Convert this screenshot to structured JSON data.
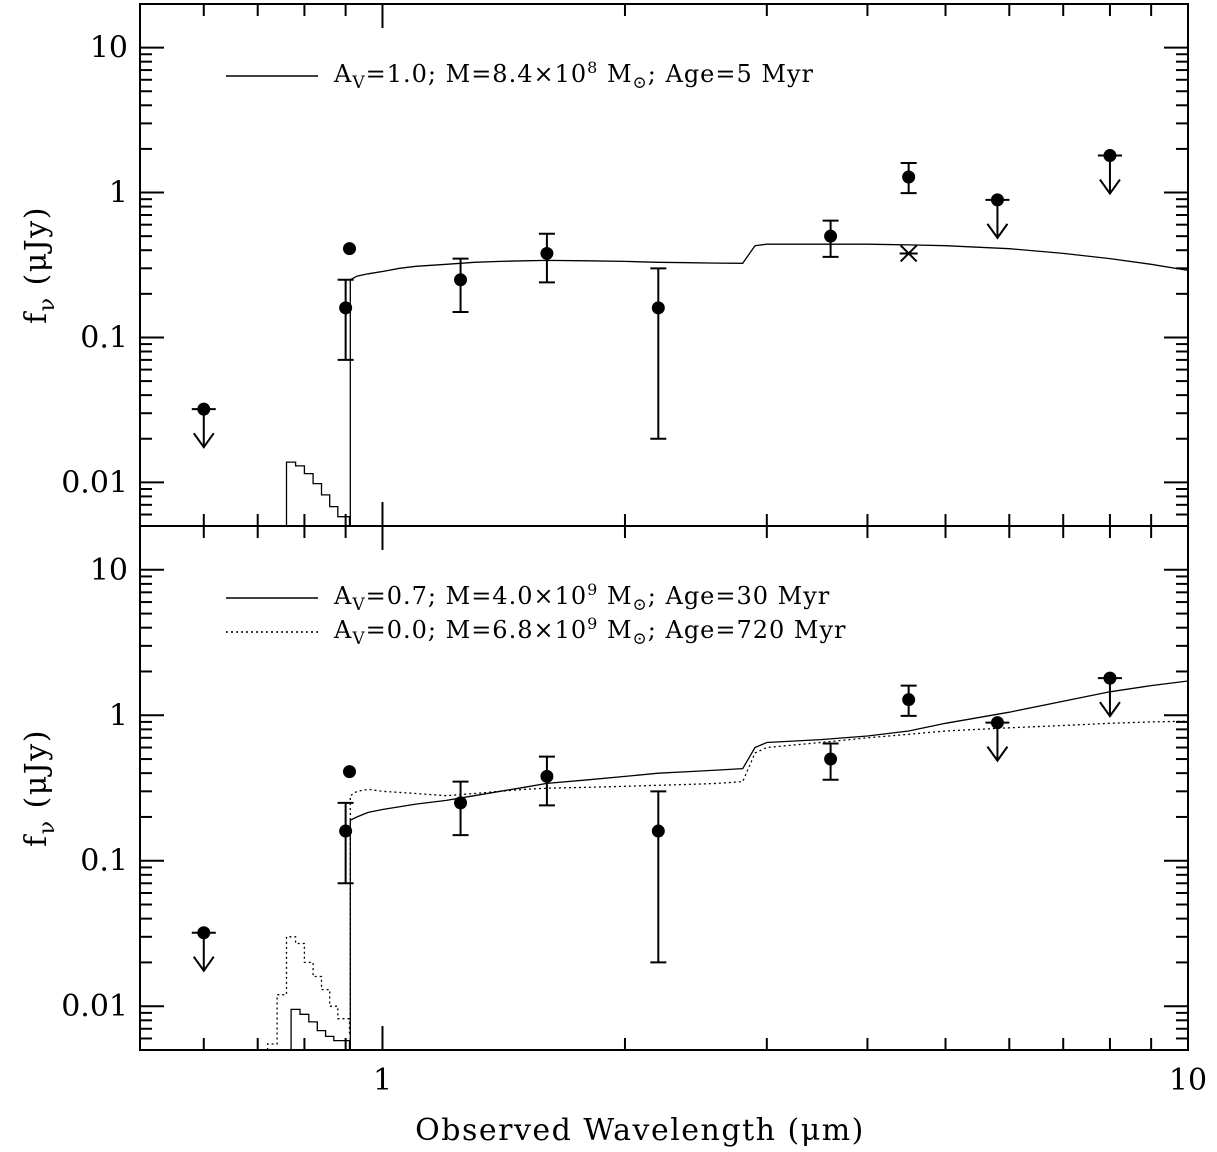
{
  "chart_data": [
    {
      "type": "scatter",
      "panel": "top",
      "xscale": "log",
      "yscale": "log",
      "xlim": [
        0.5,
        10
      ],
      "ylim": [
        0.005,
        20
      ],
      "ylabel_main": "f",
      "ylabel_sub": "ν",
      "ylabel_unit": " (μJy)",
      "xlabel": "",
      "yticks": [
        {
          "v": 0.01,
          "label": "0.01"
        },
        {
          "v": 0.1,
          "label": "0.1"
        },
        {
          "v": 1,
          "label": "1"
        },
        {
          "v": 10,
          "label": "10"
        }
      ],
      "xticks": [],
      "points": [
        {
          "x": 0.9,
          "y": 0.16,
          "lo": 0.07,
          "hi": 0.25
        },
        {
          "x": 0.91,
          "y": 0.41
        },
        {
          "x": 1.25,
          "y": 0.25,
          "lo": 0.15,
          "hi": 0.35
        },
        {
          "x": 1.6,
          "y": 0.38,
          "lo": 0.24,
          "hi": 0.52
        },
        {
          "x": 2.2,
          "y": 0.16,
          "lo": 0.02,
          "hi": 0.3
        },
        {
          "x": 3.6,
          "y": 0.5,
          "lo": 0.36,
          "hi": 0.64
        },
        {
          "x": 4.5,
          "y": 1.28,
          "lo": 0.99,
          "hi": 1.6
        }
      ],
      "upper_limits": [
        {
          "x": 0.6,
          "y": 0.032
        },
        {
          "x": 5.8,
          "y": 0.89
        },
        {
          "x": 8.0,
          "y": 1.8
        }
      ],
      "model_points": [
        {
          "x": 4.5,
          "y": 0.38,
          "marker": "x"
        }
      ],
      "series": [
        {
          "style": "solid",
          "legend": {
            "a_main": "A",
            "a_sub": "V",
            "a_rest": "=1.0; M=8.4×10",
            "exp": "8",
            "m_rest": " M",
            "m_sub": "⊙",
            "tail": "; Age=5 Myr"
          },
          "blue_bump": [
            [
              0.76,
              0.0138
            ],
            [
              0.78,
              0.013
            ],
            [
              0.8,
              0.0115
            ],
            [
              0.82,
              0.0098
            ],
            [
              0.84,
              0.0082
            ],
            [
              0.86,
              0.0068
            ],
            [
              0.88,
              0.0058
            ],
            [
              0.91,
              0.005
            ]
          ],
          "x": [
            0.912,
            0.93,
            0.96,
            1.0,
            1.05,
            1.1,
            1.2,
            1.3,
            1.4,
            1.5,
            1.6,
            1.8,
            2.0,
            2.2,
            2.4,
            2.6,
            2.8,
            2.9,
            3.0,
            3.5,
            4.0,
            4.5,
            5.0,
            6.0,
            7.0,
            8.0,
            9.0,
            10.0
          ],
          "y": [
            0.25,
            0.265,
            0.275,
            0.285,
            0.3,
            0.31,
            0.32,
            0.33,
            0.335,
            0.338,
            0.34,
            0.338,
            0.335,
            0.33,
            0.328,
            0.326,
            0.325,
            0.43,
            0.44,
            0.44,
            0.44,
            0.435,
            0.43,
            0.41,
            0.38,
            0.35,
            0.32,
            0.29
          ]
        }
      ]
    },
    {
      "type": "scatter",
      "panel": "bottom",
      "xscale": "log",
      "yscale": "log",
      "xlim": [
        0.5,
        10
      ],
      "ylim": [
        0.005,
        20
      ],
      "ylabel_main": "f",
      "ylabel_sub": "ν",
      "ylabel_unit": " (μJy)",
      "xlabel": "Observed Wavelength (μm)",
      "yticks": [
        {
          "v": 0.01,
          "label": "0.01"
        },
        {
          "v": 0.1,
          "label": "0.1"
        },
        {
          "v": 1,
          "label": "1"
        },
        {
          "v": 10,
          "label": "10"
        }
      ],
      "xticks": [
        {
          "v": 1,
          "label": "1"
        },
        {
          "v": 10,
          "label": "10"
        }
      ],
      "points": [
        {
          "x": 0.9,
          "y": 0.16,
          "lo": 0.07,
          "hi": 0.25
        },
        {
          "x": 0.91,
          "y": 0.41
        },
        {
          "x": 1.25,
          "y": 0.25,
          "lo": 0.15,
          "hi": 0.35
        },
        {
          "x": 1.6,
          "y": 0.38,
          "lo": 0.24,
          "hi": 0.52
        },
        {
          "x": 2.2,
          "y": 0.16,
          "lo": 0.02,
          "hi": 0.3
        },
        {
          "x": 3.6,
          "y": 0.5,
          "lo": 0.36,
          "hi": 0.64
        },
        {
          "x": 4.5,
          "y": 1.28,
          "lo": 0.99,
          "hi": 1.6
        }
      ],
      "upper_limits": [
        {
          "x": 0.6,
          "y": 0.032
        },
        {
          "x": 5.8,
          "y": 0.89
        },
        {
          "x": 8.0,
          "y": 1.8
        }
      ],
      "model_points": [],
      "series": [
        {
          "style": "solid",
          "legend": {
            "a_main": "A",
            "a_sub": "V",
            "a_rest": "=0.7; M=4.0×10",
            "exp": "9",
            "m_rest": " M",
            "m_sub": "⊙",
            "tail": "; Age=30 Myr"
          },
          "blue_bump": [
            [
              0.77,
              0.0095
            ],
            [
              0.79,
              0.0088
            ],
            [
              0.81,
              0.0078
            ],
            [
              0.83,
              0.0068
            ],
            [
              0.85,
              0.0062
            ],
            [
              0.87,
              0.0058
            ],
            [
              0.91,
              0.005
            ]
          ],
          "x": [
            0.912,
            0.93,
            0.96,
            1.0,
            1.1,
            1.2,
            1.3,
            1.4,
            1.5,
            1.6,
            1.8,
            2.0,
            2.2,
            2.4,
            2.6,
            2.8,
            2.9,
            3.0,
            3.5,
            4.0,
            4.5,
            5.0,
            6.0,
            7.0,
            8.0,
            9.0,
            10.0
          ],
          "y": [
            0.19,
            0.2,
            0.215,
            0.225,
            0.245,
            0.26,
            0.28,
            0.3,
            0.32,
            0.34,
            0.36,
            0.38,
            0.4,
            0.41,
            0.42,
            0.43,
            0.6,
            0.65,
            0.68,
            0.72,
            0.78,
            0.88,
            1.05,
            1.25,
            1.45,
            1.6,
            1.72
          ]
        },
        {
          "style": "dotted",
          "legend": {
            "a_main": "A",
            "a_sub": "V",
            "a_rest": "=0.0; M=6.8×10",
            "exp": "9",
            "m_rest": " M",
            "m_sub": "⊙",
            "tail": "; Age=720 Myr"
          },
          "blue_bump": [
            [
              0.72,
              0.0055
            ],
            [
              0.74,
              0.012
            ],
            [
              0.76,
              0.03
            ],
            [
              0.78,
              0.027
            ],
            [
              0.8,
              0.02
            ],
            [
              0.82,
              0.016
            ],
            [
              0.84,
              0.013
            ],
            [
              0.86,
              0.01
            ],
            [
              0.88,
              0.0082
            ],
            [
              0.91,
              0.0065
            ]
          ],
          "x": [
            0.912,
            0.93,
            0.96,
            1.0,
            1.1,
            1.2,
            1.3,
            1.4,
            1.5,
            1.6,
            1.8,
            2.0,
            2.2,
            2.4,
            2.6,
            2.8,
            2.9,
            3.0,
            3.5,
            4.0,
            4.5,
            5.0,
            6.0,
            7.0,
            8.0,
            9.0,
            10.0
          ],
          "y": [
            0.28,
            0.3,
            0.31,
            0.3,
            0.29,
            0.28,
            0.29,
            0.3,
            0.31,
            0.315,
            0.32,
            0.325,
            0.33,
            0.335,
            0.34,
            0.35,
            0.55,
            0.6,
            0.65,
            0.7,
            0.74,
            0.78,
            0.82,
            0.85,
            0.88,
            0.9,
            0.91
          ]
        }
      ]
    }
  ]
}
